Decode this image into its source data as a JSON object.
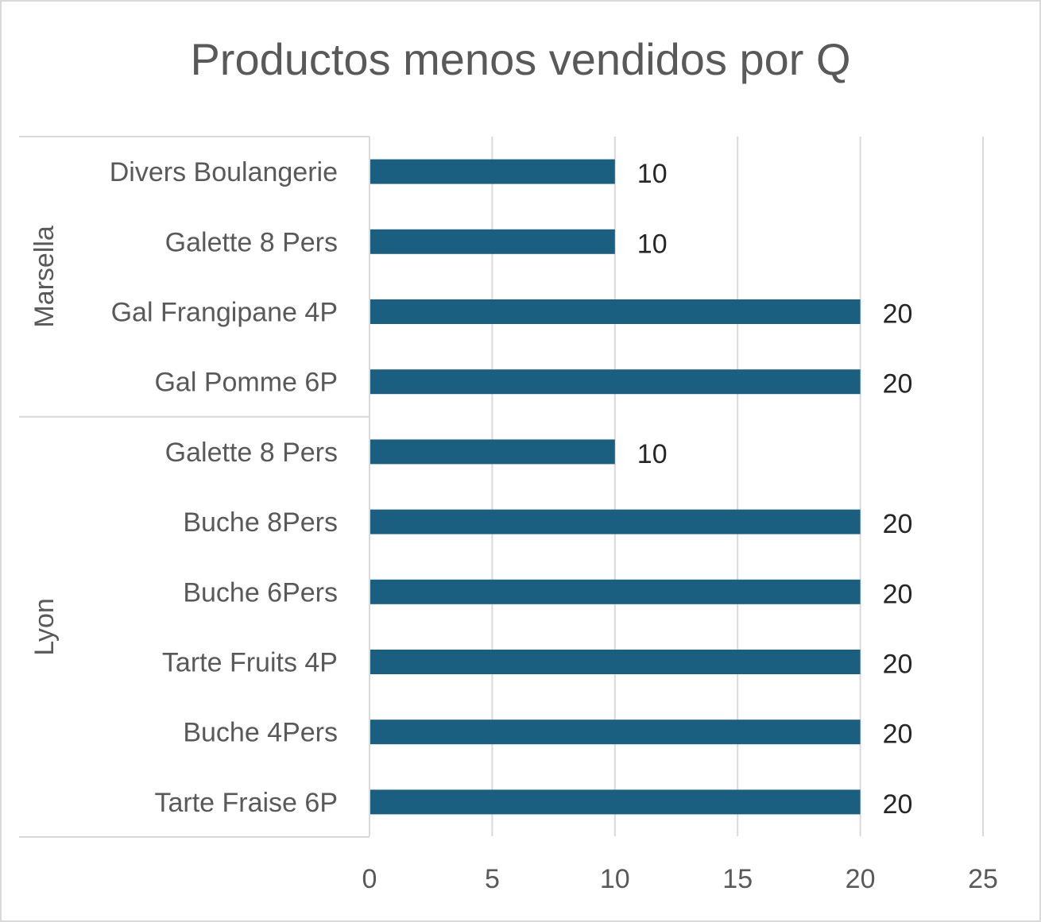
{
  "chart_data": {
    "type": "bar",
    "orientation": "horizontal",
    "title": "Productos menos vendidos por Q",
    "groups": [
      {
        "name": "Marsella",
        "categories": [
          "Divers Boulangerie",
          "Galette 8 Pers",
          "Gal Frangipane 4P",
          "Gal Pomme 6P"
        ],
        "values": [
          10,
          10,
          20,
          20
        ]
      },
      {
        "name": "Lyon",
        "categories": [
          "Galette 8 Pers",
          "Buche 8Pers",
          "Buche 6Pers",
          "Tarte Fruits 4P",
          "Buche 4Pers",
          "Tarte Fraise 6P"
        ],
        "values": [
          10,
          20,
          20,
          20,
          20,
          20
        ]
      }
    ],
    "xlim": [
      0,
      25
    ],
    "xticks": [
      0,
      5,
      10,
      15,
      20,
      25
    ],
    "data_labels": true,
    "grid": "vertical",
    "legend": "none",
    "bar_color": "#1a5e80"
  }
}
